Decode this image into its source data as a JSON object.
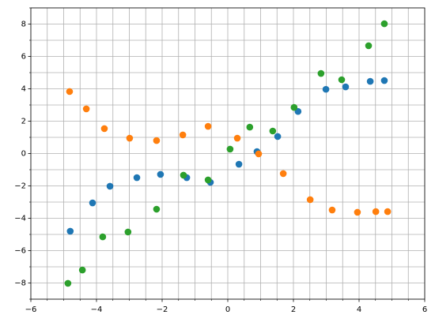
{
  "chart_data": {
    "type": "scatter",
    "xlim": [
      -6,
      6
    ],
    "ylim": [
      -9,
      9
    ],
    "xticks": [
      {
        "value": -6,
        "label": "−6"
      },
      {
        "value": -4,
        "label": "−4"
      },
      {
        "value": -2,
        "label": "−2"
      },
      0,
      2,
      4,
      6
    ],
    "yticks": [
      {
        "value": -8,
        "label": "−8"
      },
      {
        "value": -6,
        "label": "−6"
      },
      {
        "value": -4,
        "label": "−4"
      },
      {
        "value": -2,
        "label": "−2"
      },
      0,
      2,
      4,
      6,
      8
    ],
    "xminorticks": [
      -5.5,
      -5,
      -4.5,
      -3.5,
      -3,
      -2.5,
      -1.5,
      -1,
      -0.5,
      0.5,
      1,
      1.5,
      2.5,
      3,
      3.5,
      4.5,
      5,
      5.5
    ],
    "yminorticks": [
      -9,
      -7,
      -5,
      -3,
      -1,
      1,
      3,
      5,
      7,
      9
    ],
    "grid": true,
    "series": [
      {
        "color": "#1f77b4",
        "x": [
          -4.8,
          -4.12,
          -3.59,
          -2.77,
          -2.05,
          -1.25,
          -0.53,
          0.34,
          0.89,
          1.52,
          2.14,
          2.99,
          3.59,
          4.34,
          4.77
        ],
        "values": [
          -4.8,
          -3.05,
          -2.02,
          -1.49,
          -1.29,
          -1.49,
          -1.78,
          -0.66,
          0.12,
          1.05,
          2.6,
          3.97,
          4.12,
          4.46,
          4.51
        ]
      },
      {
        "color": "#ff7f0e",
        "x": [
          -4.82,
          -4.31,
          -3.76,
          -2.99,
          -2.17,
          -1.37,
          -0.6,
          0.29,
          0.94,
          1.69,
          2.51,
          3.18,
          3.95,
          4.51,
          4.87
        ],
        "values": [
          3.83,
          2.76,
          1.54,
          0.95,
          0.8,
          1.15,
          1.68,
          0.95,
          -0.02,
          -1.24,
          -2.85,
          -3.49,
          -3.63,
          -3.59,
          -3.59
        ]
      },
      {
        "color": "#2ca02c",
        "x": [
          -4.87,
          -4.43,
          -3.81,
          -3.04,
          -2.17,
          -1.35,
          -0.6,
          0.07,
          0.67,
          1.37,
          2.02,
          2.84,
          3.47,
          4.29,
          4.77
        ],
        "values": [
          -8.02,
          -7.2,
          -5.15,
          -4.85,
          -3.44,
          -1.34,
          -1.63,
          0.27,
          1.63,
          1.39,
          2.85,
          4.95,
          4.56,
          6.66,
          8.02
        ]
      }
    ]
  }
}
